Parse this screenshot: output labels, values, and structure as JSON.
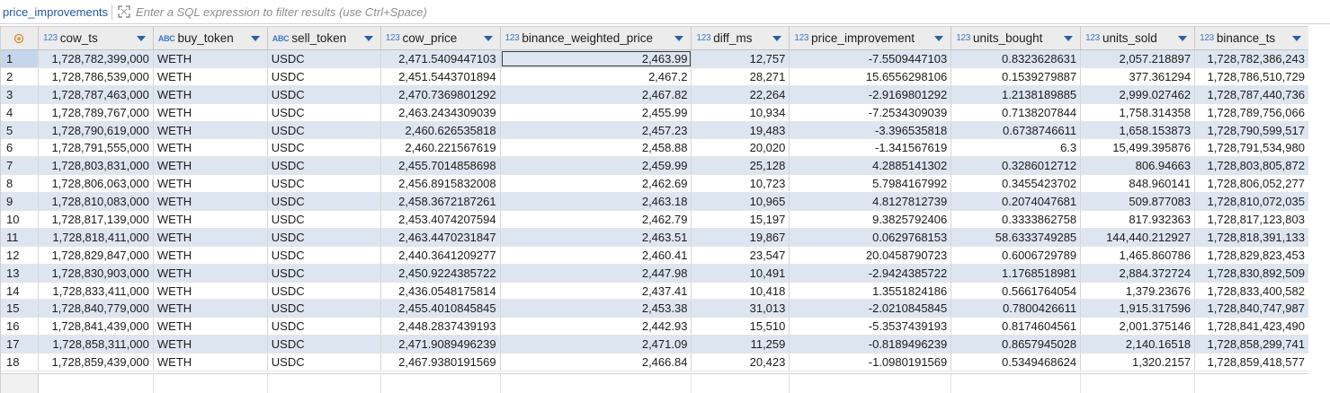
{
  "filter": {
    "table_name": "price_improvements",
    "placeholder": "Enter a SQL expression to filter results (use Ctrl+Space)"
  },
  "columns": [
    {
      "type": "123",
      "name": "cow_ts",
      "align": "num"
    },
    {
      "type": "ABC",
      "name": "buy_token",
      "align": "txt"
    },
    {
      "type": "ABC",
      "name": "sell_token",
      "align": "txt"
    },
    {
      "type": "123",
      "name": "cow_price",
      "align": "num"
    },
    {
      "type": "123",
      "name": "binance_weighted_price",
      "align": "num"
    },
    {
      "type": "123",
      "name": "diff_ms",
      "align": "num"
    },
    {
      "type": "123",
      "name": "price_improvement",
      "align": "num"
    },
    {
      "type": "123",
      "name": "units_bought",
      "align": "num"
    },
    {
      "type": "123",
      "name": "units_sold",
      "align": "num"
    },
    {
      "type": "123",
      "name": "binance_ts",
      "align": "num"
    }
  ],
  "rows": [
    [
      "1",
      "1,728,782,399,000",
      "WETH",
      "USDC",
      "2,471.5409447103",
      "2,463.99",
      "12,757",
      "-7.5509447103",
      "0.8323628631",
      "2,057.218897",
      "1,728,782,386,243"
    ],
    [
      "2",
      "1,728,786,539,000",
      "WETH",
      "USDC",
      "2,451.5443701894",
      "2,467.2",
      "28,271",
      "15.6556298106",
      "0.1539279887",
      "377.361294",
      "1,728,786,510,729"
    ],
    [
      "3",
      "1,728,787,463,000",
      "WETH",
      "USDC",
      "2,470.7369801292",
      "2,467.82",
      "22,264",
      "-2.9169801292",
      "1.2138189885",
      "2,999.027462",
      "1,728,787,440,736"
    ],
    [
      "4",
      "1,728,789,767,000",
      "WETH",
      "USDC",
      "2,463.2434309039",
      "2,455.99",
      "10,934",
      "-7.2534309039",
      "0.7138207844",
      "1,758.314358",
      "1,728,789,756,066"
    ],
    [
      "5",
      "1,728,790,619,000",
      "WETH",
      "USDC",
      "2,460.626535818",
      "2,457.23",
      "19,483",
      "-3.396535818",
      "0.6738746611",
      "1,658.153873",
      "1,728,790,599,517"
    ],
    [
      "6",
      "1,728,791,555,000",
      "WETH",
      "USDC",
      "2,460.221567619",
      "2,458.88",
      "20,020",
      "-1.341567619",
      "6.3",
      "15,499.395876",
      "1,728,791,534,980"
    ],
    [
      "7",
      "1,728,803,831,000",
      "WETH",
      "USDC",
      "2,455.7014858698",
      "2,459.99",
      "25,128",
      "4.2885141302",
      "0.3286012712",
      "806.94663",
      "1,728,803,805,872"
    ],
    [
      "8",
      "1,728,806,063,000",
      "WETH",
      "USDC",
      "2,456.8915832008",
      "2,462.69",
      "10,723",
      "5.7984167992",
      "0.3455423702",
      "848.960141",
      "1,728,806,052,277"
    ],
    [
      "9",
      "1,728,810,083,000",
      "WETH",
      "USDC",
      "2,458.3672187261",
      "2,463.18",
      "10,965",
      "4.8127812739",
      "0.2074047681",
      "509.877083",
      "1,728,810,072,035"
    ],
    [
      "10",
      "1,728,817,139,000",
      "WETH",
      "USDC",
      "2,453.4074207594",
      "2,462.79",
      "15,197",
      "9.3825792406",
      "0.3333862758",
      "817.932363",
      "1,728,817,123,803"
    ],
    [
      "11",
      "1,728,818,411,000",
      "WETH",
      "USDC",
      "2,463.4470231847",
      "2,463.51",
      "19,867",
      "0.0629768153",
      "58.6333749285",
      "144,440.212927",
      "1,728,818,391,133"
    ],
    [
      "12",
      "1,728,829,847,000",
      "WETH",
      "USDC",
      "2,440.3641209277",
      "2,460.41",
      "23,547",
      "20.0458790723",
      "0.6006729789",
      "1,465.860786",
      "1,728,829,823,453"
    ],
    [
      "13",
      "1,728,830,903,000",
      "WETH",
      "USDC",
      "2,450.9224385722",
      "2,447.98",
      "10,491",
      "-2.9424385722",
      "1.1768518981",
      "2,884.372724",
      "1,728,830,892,509"
    ],
    [
      "14",
      "1,728,833,411,000",
      "WETH",
      "USDC",
      "2,436.0548175814",
      "2,437.41",
      "10,418",
      "1.3551824186",
      "0.5661764054",
      "1,379.23676",
      "1,728,833,400,582"
    ],
    [
      "15",
      "1,728,840,779,000",
      "WETH",
      "USDC",
      "2,455.4010845845",
      "2,453.38",
      "31,013",
      "-2.0210845845",
      "0.7800426611",
      "1,915.317596",
      "1,728,840,747,987"
    ],
    [
      "16",
      "1,728,841,439,000",
      "WETH",
      "USDC",
      "2,448.2837439193",
      "2,442.93",
      "15,510",
      "-5.3537439193",
      "0.8174604561",
      "2,001.375146",
      "1,728,841,423,490"
    ],
    [
      "17",
      "1,728,858,311,000",
      "WETH",
      "USDC",
      "2,471.9089496239",
      "2,471.09",
      "11,259",
      "-0.8189496239",
      "0.8657945028",
      "2,140.16518",
      "1,728,858,299,741"
    ],
    [
      "18",
      "1,728,859,439,000",
      "WETH",
      "USDC",
      "2,467.9380191569",
      "2,466.84",
      "20,423",
      "-1.0980191569",
      "0.5349468624",
      "1,320.2157",
      "1,728,859,418,577"
    ]
  ],
  "colors": {
    "odd_row": "#dde6f0",
    "header_bg": "#ececec",
    "type_icon": "#3d79c7",
    "table_name": "#1f58a6"
  }
}
